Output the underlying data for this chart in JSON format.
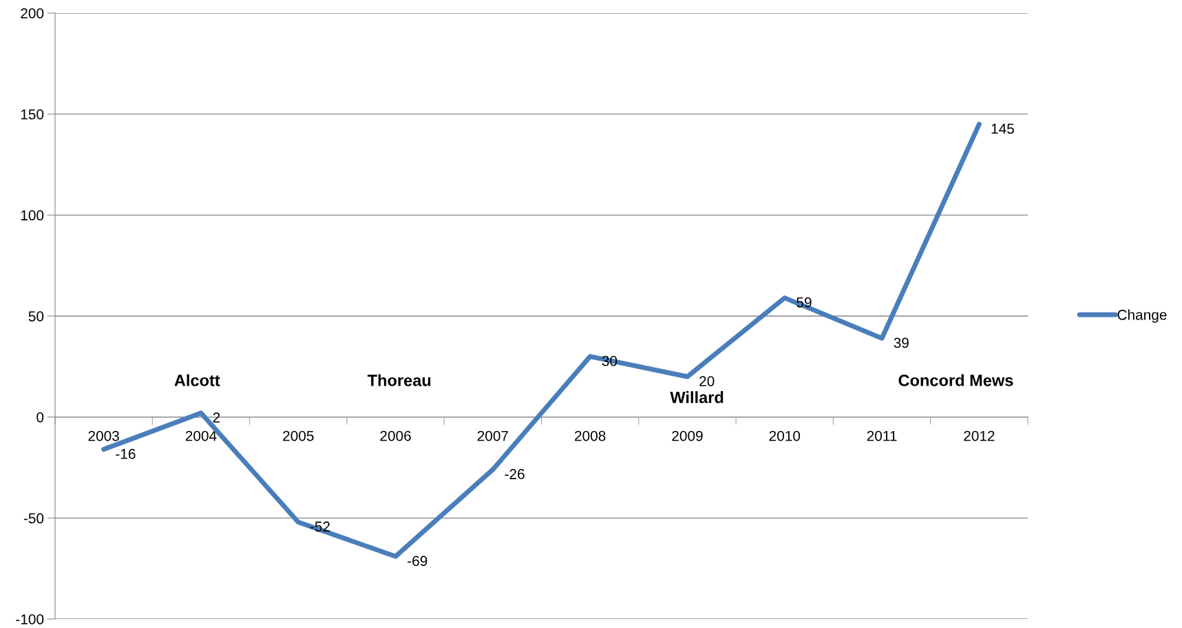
{
  "chart_data": {
    "type": "line",
    "categories": [
      "2003",
      "2004",
      "2005",
      "2006",
      "2007",
      "2008",
      "2009",
      "2010",
      "2011",
      "2012"
    ],
    "series": [
      {
        "name": "Change",
        "color": "#4a7ebb",
        "values": [
          -16,
          2,
          -52,
          -69,
          -26,
          30,
          20,
          59,
          39,
          145
        ]
      }
    ],
    "ylim": [
      -100,
      200
    ],
    "yticks": [
      -100,
      -50,
      0,
      50,
      100,
      150,
      200
    ],
    "grid": "y",
    "legend": "right",
    "data_labels": true,
    "marker": "none",
    "line_style": "solid",
    "annotations": [
      "Alcott",
      "Thoreau",
      "Willard",
      "Concord Mews"
    ]
  }
}
